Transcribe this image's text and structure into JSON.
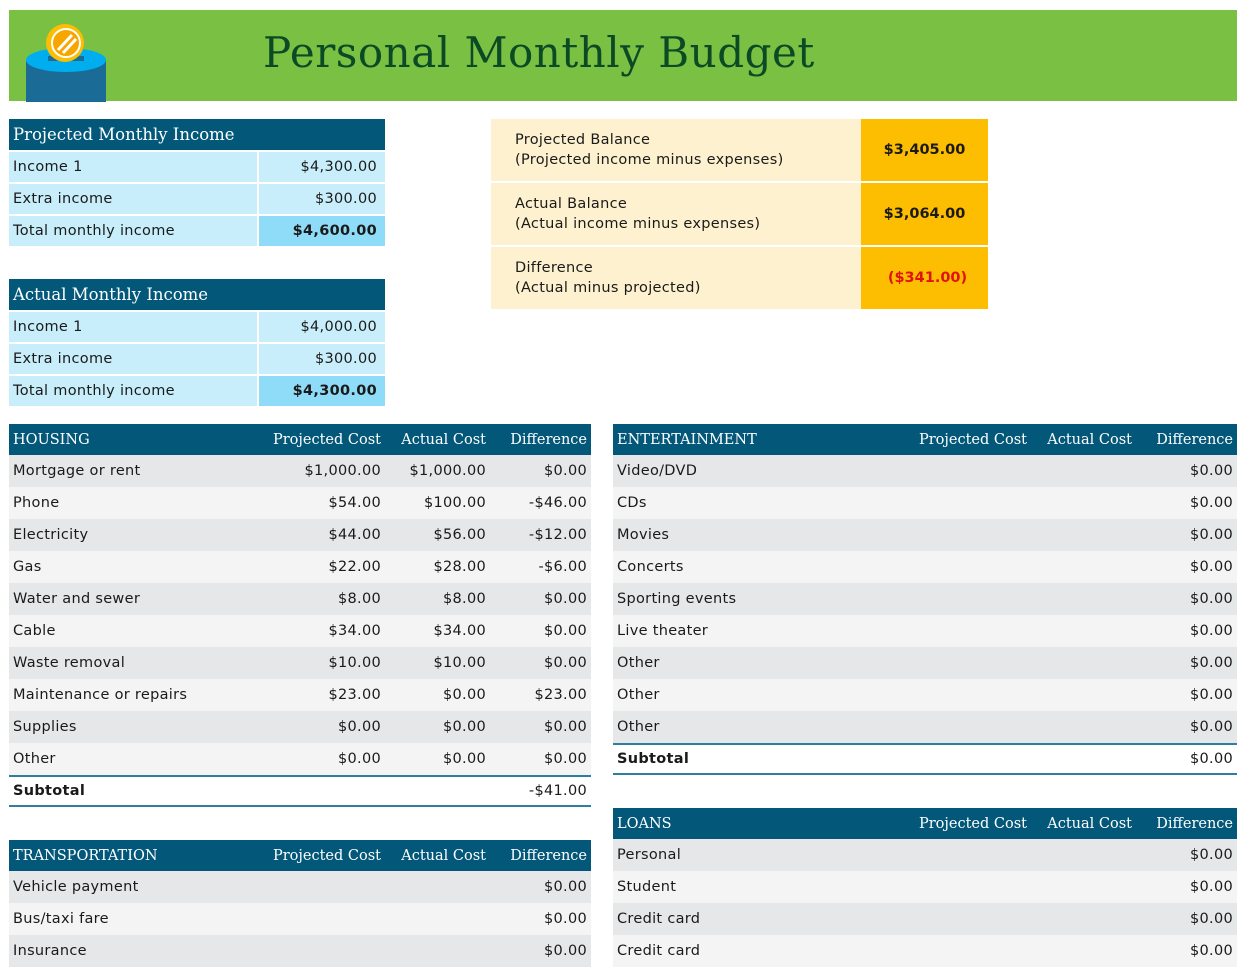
{
  "header": {
    "title": "Personal Monthly Budget",
    "logo": "coin-bank-icon",
    "colors": {
      "banner": "#7ac143",
      "title": "#0b4a25",
      "table_header": "#03587a"
    }
  },
  "projected_income": {
    "title": "Projected Monthly Income",
    "rows": [
      {
        "label": "Income 1",
        "value": "$4,300.00"
      },
      {
        "label": "Extra income",
        "value": "$300.00"
      },
      {
        "label": "Total monthly income",
        "value": "$4,600.00"
      }
    ]
  },
  "actual_income": {
    "title": "Actual Monthly Income",
    "rows": [
      {
        "label": "Income 1",
        "value": "$4,000.00"
      },
      {
        "label": "Extra income",
        "value": "$300.00"
      },
      {
        "label": "Total monthly income",
        "value": "$4,300.00"
      }
    ]
  },
  "balance": [
    {
      "label": "Projected Balance",
      "sub": "(Projected income minus expenses)",
      "value": "$3,405.00"
    },
    {
      "label": "Actual Balance",
      "sub": "(Actual income minus expenses)",
      "value": "$3,064.00"
    },
    {
      "label": "Difference",
      "sub": "(Actual minus projected)",
      "value": "($341.00)"
    }
  ],
  "columns": {
    "projected": "Projected Cost",
    "actual": "Actual Cost",
    "difference": "Difference"
  },
  "housing": {
    "title": "HOUSING",
    "rows": [
      {
        "label": "Mortgage or rent",
        "p": "$1,000.00",
        "a": "$1,000.00",
        "d": "$0.00"
      },
      {
        "label": "Phone",
        "p": "$54.00",
        "a": "$100.00",
        "d": "-$46.00"
      },
      {
        "label": "Electricity",
        "p": "$44.00",
        "a": "$56.00",
        "d": "-$12.00"
      },
      {
        "label": "Gas",
        "p": "$22.00",
        "a": "$28.00",
        "d": "-$6.00"
      },
      {
        "label": "Water and sewer",
        "p": "$8.00",
        "a": "$8.00",
        "d": "$0.00"
      },
      {
        "label": "Cable",
        "p": "$34.00",
        "a": "$34.00",
        "d": "$0.00"
      },
      {
        "label": "Waste removal",
        "p": "$10.00",
        "a": "$10.00",
        "d": "$0.00"
      },
      {
        "label": "Maintenance or repairs",
        "p": "$23.00",
        "a": "$0.00",
        "d": "$23.00"
      },
      {
        "label": "Supplies",
        "p": "$0.00",
        "a": "$0.00",
        "d": "$0.00"
      },
      {
        "label": "Other",
        "p": "$0.00",
        "a": "$0.00",
        "d": "$0.00"
      }
    ],
    "subtotal": {
      "label": "Subtotal",
      "d": "-$41.00"
    }
  },
  "entertainment": {
    "title": "ENTERTAINMENT",
    "rows": [
      {
        "label": "Video/DVD",
        "d": "$0.00"
      },
      {
        "label": "CDs",
        "d": "$0.00"
      },
      {
        "label": "Movies",
        "d": "$0.00"
      },
      {
        "label": "Concerts",
        "d": "$0.00"
      },
      {
        "label": "Sporting events",
        "d": "$0.00"
      },
      {
        "label": "Live theater",
        "d": "$0.00"
      },
      {
        "label": "Other",
        "d": "$0.00"
      },
      {
        "label": "Other",
        "d": "$0.00"
      },
      {
        "label": "Other",
        "d": "$0.00"
      }
    ],
    "subtotal": {
      "label": "Subtotal",
      "d": "$0.00"
    }
  },
  "transportation": {
    "title": "TRANSPORTATION",
    "rows": [
      {
        "label": "Vehicle payment",
        "d": "$0.00"
      },
      {
        "label": "Bus/taxi fare",
        "d": "$0.00"
      },
      {
        "label": "Insurance",
        "d": "$0.00"
      }
    ]
  },
  "loans": {
    "title": "LOANS",
    "rows": [
      {
        "label": "Personal",
        "d": "$0.00"
      },
      {
        "label": "Student",
        "d": "$0.00"
      },
      {
        "label": "Credit card",
        "d": "$0.00"
      },
      {
        "label": "Credit card",
        "d": "$0.00"
      }
    ]
  }
}
